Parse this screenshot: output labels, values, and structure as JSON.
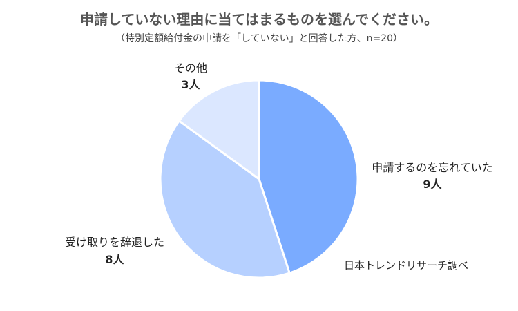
{
  "chart_data": {
    "type": "pie",
    "title": "申請していない理由に当てはまるものを選んでください。",
    "subtitle": "（特別定額給付金の申請を「していない」と回答した方、n=20）",
    "slices": [
      {
        "label": "申請するのを忘れていた",
        "value": 9,
        "value_label": "9人",
        "color": "#7aabff"
      },
      {
        "label": "受け取りを辞退した",
        "value": 8,
        "value_label": "8人",
        "color": "#b6d0ff"
      },
      {
        "label": "その他",
        "value": 3,
        "value_label": "3人",
        "color": "#dbe7ff"
      }
    ],
    "source": "日本トレンドリサーチ調べ"
  }
}
